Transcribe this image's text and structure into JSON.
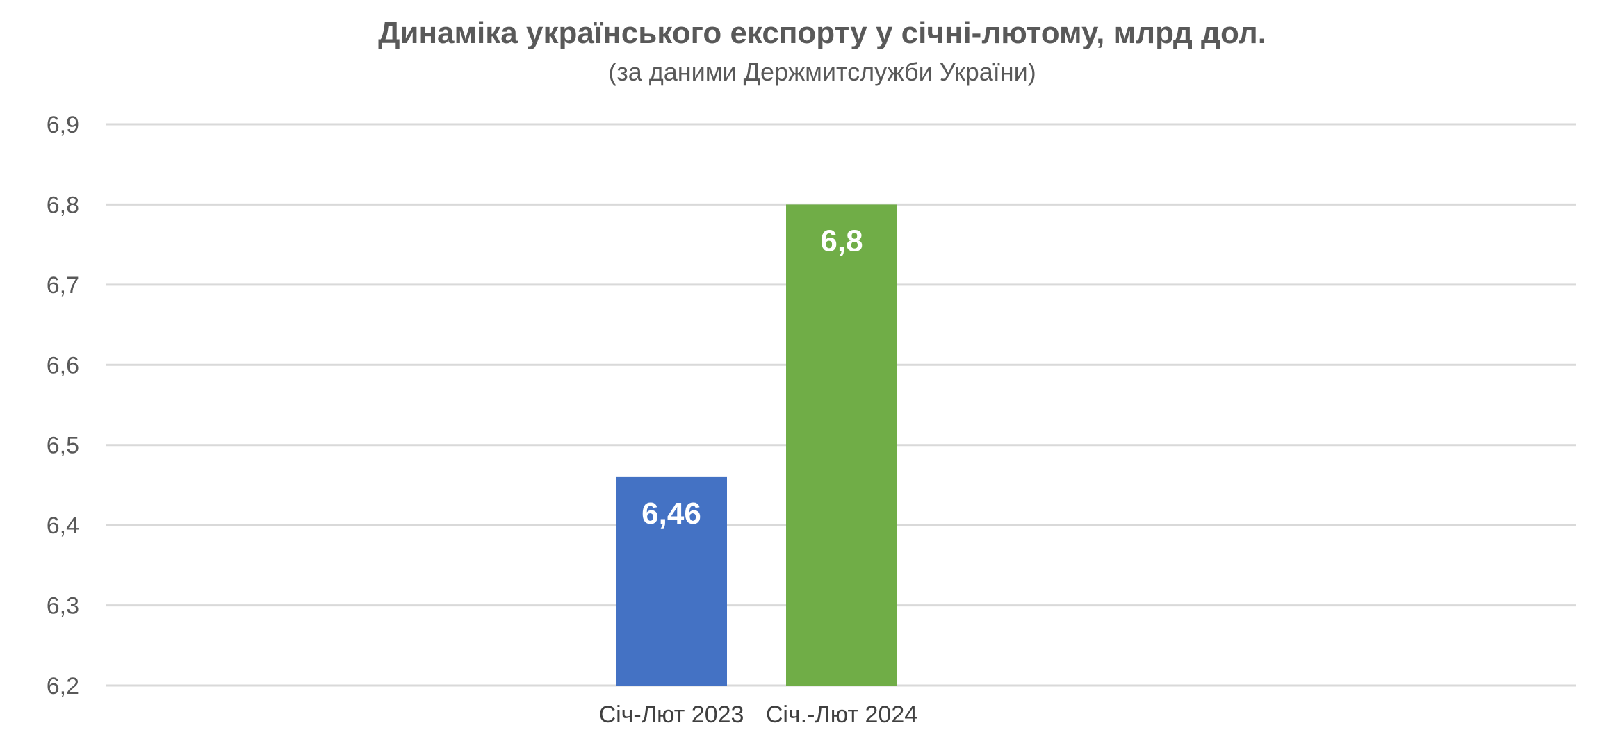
{
  "chart_data": {
    "type": "bar",
    "title": "Динаміка українського експорту у січні-лютому, млрд дол.",
    "subtitle": "(за даними Держмитслужби України)",
    "categories": [
      "Січ-Лют 2023",
      "Січ.-Лют 2024"
    ],
    "values": [
      6.46,
      6.8
    ],
    "data_labels": [
      "6,46",
      "6,8"
    ],
    "bar_colors": [
      "#4472c4",
      "#70ad47"
    ],
    "ylim": [
      6.2,
      6.9
    ],
    "y_ticks": [
      6.2,
      6.3,
      6.4,
      6.5,
      6.6,
      6.7,
      6.8,
      6.9
    ],
    "y_tick_labels": [
      "6,2",
      "6,3",
      "6,4",
      "6,5",
      "6,6",
      "6,7",
      "6,8",
      "6,9"
    ],
    "grid": true,
    "legend": "none",
    "xlabel": "",
    "ylabel": ""
  }
}
